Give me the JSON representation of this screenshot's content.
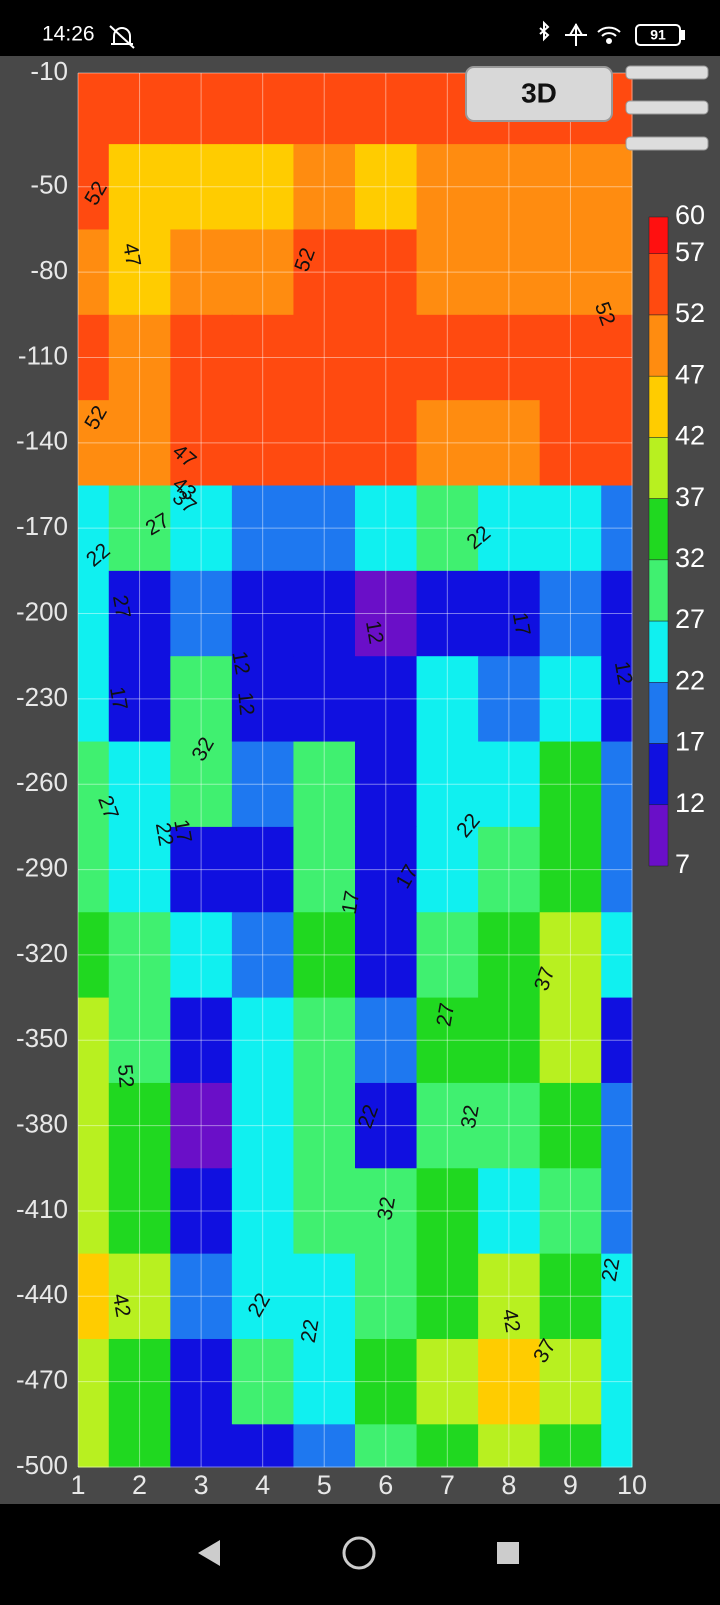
{
  "status_bar": {
    "time": "14:26",
    "battery": "91"
  },
  "toolbar": {
    "button": "3D"
  },
  "chart_data": {
    "type": "contour",
    "x": [
      1,
      2,
      3,
      4,
      5,
      6,
      7,
      8,
      9,
      10
    ],
    "depths": [
      -20,
      -50,
      -80,
      -110,
      -140,
      -170,
      -200,
      -230,
      -260,
      -290,
      -320,
      -350,
      -380,
      -410,
      -440,
      -470,
      -500
    ],
    "values": [
      [
        55,
        54,
        53,
        54,
        53,
        54,
        53,
        53,
        54,
        55
      ],
      [
        52,
        45,
        45,
        45,
        50,
        44,
        50,
        50,
        50,
        51
      ],
      [
        51,
        45,
        50,
        48,
        53,
        53,
        50,
        50,
        51,
        50
      ],
      [
        53,
        48,
        54,
        54,
        54,
        54,
        53,
        53,
        54,
        53
      ],
      [
        51,
        50,
        53,
        53,
        53,
        53,
        50,
        48,
        52,
        53
      ],
      [
        24,
        27,
        25,
        20,
        20,
        25,
        28,
        25,
        25,
        20
      ],
      [
        22,
        12,
        18,
        15,
        12,
        10,
        14,
        14,
        19,
        15
      ],
      [
        22,
        15,
        30,
        12,
        14,
        14,
        22,
        18,
        22,
        12
      ],
      [
        27,
        22,
        27,
        18,
        30,
        14,
        22,
        23,
        32,
        17
      ],
      [
        30,
        22,
        16,
        15,
        30,
        16,
        25,
        30,
        35,
        20
      ],
      [
        35,
        27,
        25,
        18,
        32,
        14,
        27,
        33,
        37,
        22
      ],
      [
        37,
        28,
        12,
        24,
        27,
        20,
        32,
        34,
        40,
        14
      ],
      [
        40,
        32,
        10,
        25,
        28,
        15,
        30,
        30,
        35,
        20
      ],
      [
        40,
        33,
        14,
        22,
        30,
        27,
        32,
        22,
        30,
        18
      ],
      [
        43,
        37,
        18,
        25,
        22,
        27,
        34,
        40,
        35,
        22
      ],
      [
        40,
        35,
        15,
        28,
        25,
        33,
        38,
        42,
        37,
        22
      ],
      [
        38,
        33,
        12,
        12,
        20,
        30,
        35,
        38,
        32,
        25
      ]
    ],
    "xlim": [
      1,
      10
    ],
    "xticks": [
      1,
      2,
      3,
      4,
      5,
      6,
      7,
      8,
      9,
      10
    ],
    "ylim": [
      -10,
      -500
    ],
    "yticks": [
      -10,
      -50,
      -80,
      -110,
      -140,
      -170,
      -200,
      -230,
      -260,
      -290,
      -320,
      -350,
      -380,
      -410,
      -440,
      -470,
      -500
    ],
    "grid": true,
    "levels": [
      60,
      57,
      52,
      47,
      42,
      37,
      32,
      27,
      22,
      17,
      12,
      7
    ],
    "colors": [
      "#ff1010",
      "#ff4a10",
      "#ff8c10",
      "#ffcc00",
      "#b8f020",
      "#20d820",
      "#40f070",
      "#10f0f0",
      "#1e78f0",
      "#1010e0",
      "#6a0fc8"
    ],
    "contour_labels": [
      "52",
      "52",
      "47",
      "52",
      "52",
      "52",
      "47",
      "43",
      "37",
      "27",
      "22",
      "32",
      "22",
      "27",
      "12",
      "12",
      "17",
      "17",
      "12",
      "12",
      "17",
      "22",
      "17",
      "27",
      "22",
      "17",
      "32",
      "22",
      "27",
      "37",
      "22",
      "32",
      "42",
      "42",
      "37",
      "22",
      "22"
    ]
  }
}
